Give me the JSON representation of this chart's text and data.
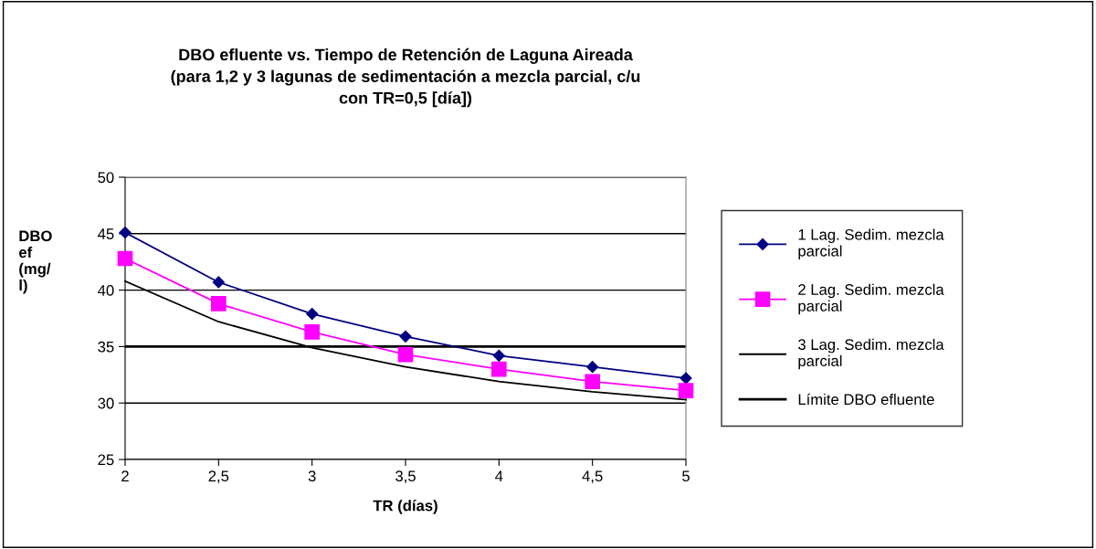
{
  "chart_data": {
    "type": "line",
    "title": "DBO efluente vs. Tiempo de Retención de Laguna Aireada\n(para 1,2 y 3 lagunas de sedimentación a mezcla parcial, c/u\ncon TR=0,5 [día])",
    "xlabel": "TR (días)",
    "ylabel": "DBO\nef\n(mg/\nl)",
    "x": [
      2,
      2.5,
      3,
      3.5,
      4,
      4.5,
      5
    ],
    "series": [
      {
        "name": "1 Lag. Sedim. mezcla\nparcial",
        "color": "#000080",
        "marker": "diamond",
        "values": [
          45.1,
          40.7,
          37.9,
          35.9,
          34.2,
          33.2,
          32.2
        ]
      },
      {
        "name": "2 Lag. Sedim. mezcla\nparcial",
        "color": "#ff00ff",
        "marker": "square",
        "values": [
          42.8,
          38.8,
          36.3,
          34.3,
          33.0,
          31.9,
          31.1
        ]
      },
      {
        "name": "3 Lag. Sedim. mezcla\nparcial",
        "color": "#000000",
        "marker": "none",
        "values": [
          40.8,
          37.2,
          34.9,
          33.2,
          31.9,
          31.0,
          30.3
        ]
      }
    ],
    "ref_lines": [
      {
        "axis": "y",
        "value": 35,
        "label": "Límite DBO efluente",
        "color": "#000000",
        "line_style": "solid"
      }
    ],
    "xlim": [
      2,
      5
    ],
    "ylim": [
      25,
      50
    ],
    "xticks": [
      2,
      {
        "value": 2.5,
        "label": "2,5"
      },
      3,
      {
        "value": 3.5,
        "label": "3,5"
      },
      4,
      {
        "value": 4.5,
        "label": "4,5"
      },
      5
    ],
    "yticks": [
      25,
      30,
      35,
      40,
      45,
      50
    ],
    "grid": "y",
    "legend": "right"
  }
}
